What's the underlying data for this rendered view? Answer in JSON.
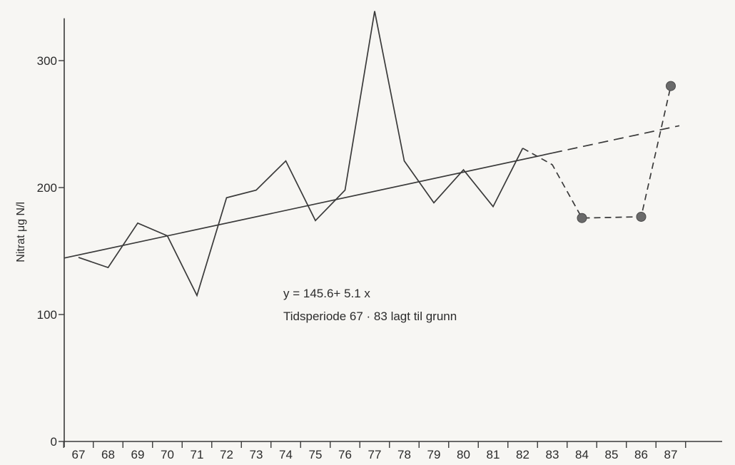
{
  "chart_data": {
    "type": "line",
    "ylabel": "Nitrat μg N/l",
    "ylim": [
      0,
      330
    ],
    "yticks": [
      0,
      100,
      200,
      300
    ],
    "yticklabels": [
      "0",
      "100",
      "200",
      "300"
    ],
    "grid": false,
    "categories": [
      "67",
      "68",
      "69",
      "70",
      "71",
      "72",
      "73",
      "74",
      "75",
      "76",
      "77",
      "78",
      "79",
      "80",
      "81",
      "82",
      "83",
      "84",
      "85",
      "86",
      "87"
    ],
    "series": [
      {
        "style": "solid",
        "x": [
          67,
          68,
          69,
          70,
          71,
          72,
          73,
          74,
          75,
          76,
          77,
          78,
          79,
          80,
          81,
          82
        ],
        "y": [
          145,
          137,
          172,
          162,
          115,
          192,
          198,
          221,
          174,
          198,
          339,
          221,
          188,
          214,
          185,
          231
        ]
      },
      {
        "style": "dashed",
        "markers": [
          false,
          false,
          true,
          true,
          true
        ],
        "x": [
          82,
          83,
          84,
          86,
          87
        ],
        "y": [
          231,
          218,
          176,
          177,
          280
        ]
      }
    ],
    "regression": {
      "intercept": 145.6,
      "slope": 5.1,
      "x_start": 67,
      "x_solid_end": 83,
      "x_dashed_end": 87
    },
    "annotations": [
      "y = 145.6+ 5.1 x",
      "Tidsperiode 67 · 83 lagt til grunn"
    ],
    "colors": {
      "line": "#3a3a3a",
      "marker": "#6a6a6a",
      "background": "#f7f6f3"
    }
  }
}
